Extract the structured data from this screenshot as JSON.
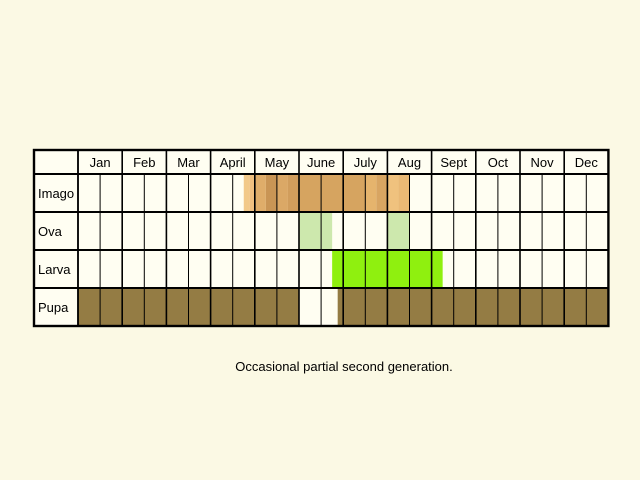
{
  "chart_data": {
    "type": "table",
    "months": [
      "Jan",
      "Feb",
      "Mar",
      "April",
      "May",
      "June",
      "July",
      "Aug",
      "Sept",
      "Oct",
      "Nov",
      "Dec"
    ],
    "rows": [
      {
        "label": "Imago",
        "segments": [
          {
            "from": 3.75,
            "to": 3.875,
            "color": "#f2c98a"
          },
          {
            "from": 3.875,
            "to": 4.0,
            "color": "#f0c080"
          },
          {
            "from": 4.0,
            "to": 4.25,
            "color": "#dfad6a"
          },
          {
            "from": 4.25,
            "to": 4.5,
            "color": "#c99555"
          },
          {
            "from": 4.5,
            "to": 4.75,
            "color": "#dba866"
          },
          {
            "from": 4.75,
            "to": 5.0,
            "color": "#d19d5c"
          },
          {
            "from": 5.0,
            "to": 5.5,
            "color": "#d6a460"
          },
          {
            "from": 5.5,
            "to": 6.5,
            "color": "#d6a460"
          },
          {
            "from": 6.5,
            "to": 6.75,
            "color": "#e5b46d"
          },
          {
            "from": 6.75,
            "to": 7.0,
            "color": "#d8a562"
          },
          {
            "from": 7.0,
            "to": 7.25,
            "color": "#f0c27e"
          },
          {
            "from": 7.25,
            "to": 7.5,
            "color": "#eab975"
          }
        ]
      },
      {
        "label": "Ova",
        "segments": [
          {
            "from": 5.0,
            "to": 5.75,
            "color": "#cde8ad"
          },
          {
            "from": 7.0,
            "to": 7.5,
            "color": "#cde8ad"
          }
        ]
      },
      {
        "label": "Larva",
        "segments": [
          {
            "from": 5.75,
            "to": 8.25,
            "color": "#8ff00f"
          }
        ]
      },
      {
        "label": "Pupa",
        "segments": [
          {
            "from": 0,
            "to": 5.0,
            "color": "#947c44"
          },
          {
            "from": 5.875,
            "to": 6.0,
            "color": "#947c44"
          },
          {
            "from": 6.0,
            "to": 12,
            "color": "#947c44"
          }
        ]
      }
    ],
    "caption": "Occasional partial second generation."
  }
}
